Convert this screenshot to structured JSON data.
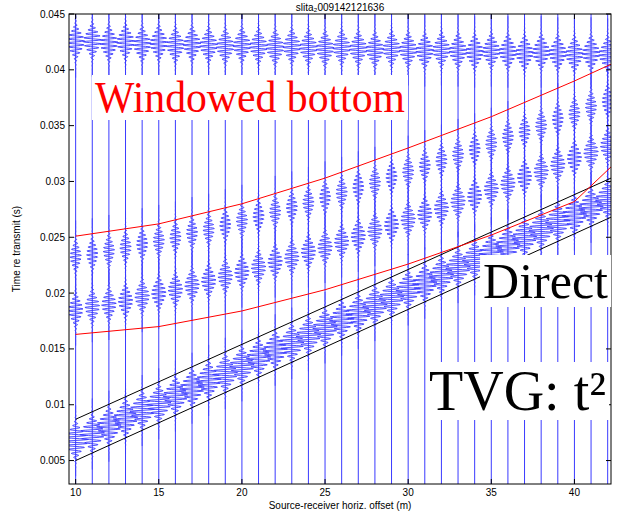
{
  "chart_data": {
    "type": "wiggle",
    "title": "slita₂009142121636",
    "x_label": "Source-receiver horiz. offset (m)",
    "y_label": "Time re transmit (s)",
    "xlim": [
      9.6,
      42.2
    ],
    "xticks": [
      10,
      15,
      20,
      25,
      30,
      35,
      40
    ],
    "ylim": [
      0.0029,
      0.045
    ],
    "yticks": [
      0.005,
      0.01,
      0.015,
      0.02,
      0.025,
      0.03,
      0.035,
      0.04,
      0.045
    ],
    "color": "#3a3aff",
    "x": [
      10,
      11,
      12,
      13,
      14,
      15,
      16,
      17,
      18,
      19,
      20,
      21,
      22,
      23,
      24,
      25,
      26,
      27,
      28,
      29,
      30,
      31,
      32,
      33,
      34,
      35,
      36,
      37,
      38,
      39,
      40,
      41,
      42
    ],
    "series": [
      {
        "amplitude": 0.75,
        "values": [
          0.0068,
          0.0074,
          0.0081,
          0.0088,
          0.0095,
          0.0101,
          0.0108,
          0.0115,
          0.0122,
          0.0128,
          0.0135,
          0.0142,
          0.0149,
          0.0155,
          0.0162,
          0.0169,
          0.0176,
          0.0182,
          0.0189,
          0.0196,
          0.0203,
          0.0209,
          0.0216,
          0.0223,
          0.023,
          0.0236,
          0.0243,
          0.025,
          0.0257,
          0.0264,
          0.027,
          0.0277,
          0.0284
        ]
      },
      {
        "amplitude": 0.45,
        "values": [
          0.0185,
          0.0188,
          0.019,
          0.0193,
          0.0197,
          0.02,
          0.0203,
          0.0207,
          0.0211,
          0.0215,
          0.0219,
          0.0223,
          0.0228,
          0.0232,
          0.0237,
          0.0241,
          0.0246,
          0.0251,
          0.0256,
          0.0261,
          0.0266,
          0.0271,
          0.0276,
          0.0282,
          0.0287,
          0.0293,
          0.0298,
          0.0304,
          0.0309,
          0.0315,
          0.0321,
          0.0326,
          0.0332
        ]
      },
      {
        "amplitude": 0.35,
        "values": [
          0.0233,
          0.0235,
          0.0238,
          0.0241,
          0.0244,
          0.0247,
          0.025,
          0.0254,
          0.0257,
          0.0261,
          0.0265,
          0.0269,
          0.0273,
          0.0277,
          0.0281,
          0.0286,
          0.029,
          0.0295,
          0.0299,
          0.0304,
          0.0309,
          0.0314,
          0.0319,
          0.0324,
          0.0329,
          0.0334,
          0.034,
          0.0345,
          0.035,
          0.0356,
          0.0361,
          0.0367,
          0.0372
        ]
      },
      {
        "amplitude": 0.55,
        "values": [
          0.0425,
          0.0426,
          0.0424,
          0.0425,
          0.0423,
          0.0424,
          0.0422,
          0.0423,
          0.0422,
          0.0421,
          0.0422,
          0.0421,
          0.042,
          0.0421,
          0.042,
          0.0419,
          0.042,
          0.0419,
          0.0418,
          0.0419,
          0.0418,
          0.0417,
          0.0418,
          0.0417,
          0.0416,
          0.0417,
          0.0416,
          0.0415,
          0.0416,
          0.0415,
          0.0414,
          0.0415,
          0.0414
        ]
      }
    ],
    "windows": [
      {
        "color": "#000000",
        "x": [
          10,
          42.2
        ],
        "values": [
          0.005,
          0.0268
        ]
      },
      {
        "color": "#000000",
        "x": [
          10,
          42.2
        ],
        "values": [
          0.0087,
          0.0303
        ]
      },
      {
        "color": "#ff0000",
        "x": [
          10,
          15,
          20,
          25,
          30,
          35,
          40,
          42.2
        ],
        "values": [
          0.0163,
          0.017,
          0.0184,
          0.0203,
          0.0226,
          0.0252,
          0.0282,
          0.0313
        ]
      },
      {
        "color": "#ff0000",
        "x": [
          10,
          15,
          20,
          25,
          30,
          35,
          40,
          42.2
        ],
        "values": [
          0.0251,
          0.0262,
          0.028,
          0.0303,
          0.033,
          0.0358,
          0.039,
          0.0405
        ]
      }
    ],
    "annotations": [
      {
        "text": "Windowed bottom",
        "color": "#ff0000"
      },
      {
        "text": "Direct",
        "color": "#000000"
      },
      {
        "text": "TVG: t²",
        "color": "#000000"
      }
    ]
  }
}
